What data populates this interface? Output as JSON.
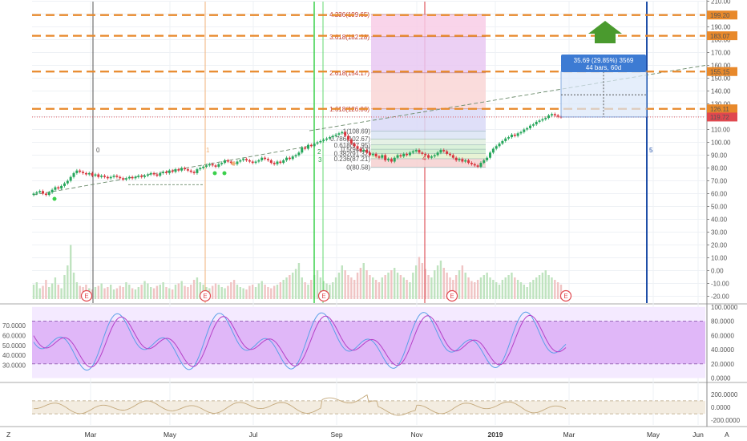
{
  "chart_data": [
    {
      "type": "candlestick",
      "panel": "price",
      "title": "",
      "y_axis_ticks": [
        "210.00",
        "200.00",
        "190.00",
        "180.00",
        "170.00",
        "160.00",
        "150.00",
        "140.00",
        "130.00",
        "120.00",
        "110.00",
        "100.00",
        "90.00",
        "80.00",
        "70.00",
        "60.00",
        "50.00",
        "40.00",
        "30.00",
        "20.00",
        "10.00",
        "0.00",
        "-10.00",
        "-20.00"
      ],
      "ylim": [
        -24,
        214
      ],
      "x_axis_labels": [
        "Mar",
        "May",
        "Jul",
        "Sep",
        "Nov",
        "2019",
        "Mar",
        "May",
        "Jun"
      ],
      "axis_corner_labels": [
        "Z",
        "A"
      ],
      "price_badges": [
        {
          "value": 199.2,
          "text": "199.20",
          "color": "#e8892b"
        },
        {
          "value": 183.07,
          "text": "183.07",
          "color": "#e8892b"
        },
        {
          "value": 155.15,
          "text": "155.15",
          "color": "#e8892b"
        },
        {
          "value": 126.11,
          "text": "126.11",
          "color": "#e8892b"
        },
        {
          "value": 119.72,
          "text": "119.72",
          "color": "#e0484f"
        }
      ],
      "horizontal_levels": [
        199.2,
        183.07,
        155.15,
        126.11
      ],
      "fib_extension_labels": [
        "4.236(199.65)",
        "3.618(182.28)",
        "2.618(154.17)",
        "1.618(126.06)"
      ],
      "fib_retracement_labels": [
        "1(108.69)",
        "0.786(102.67)",
        "0.618(97.95)",
        "0.5(94.63)",
        "0.382(91.32)",
        "0.236(87.21)",
        "0(80.58)"
      ],
      "measure_box": {
        "line1": "35.69 (29.85%) 3569",
        "line2": "44 bars, 60d"
      },
      "wave_labels": [
        "0",
        "1",
        "2",
        "3",
        "4",
        "5"
      ],
      "earnings_markers": [
        "E",
        "E",
        "E",
        "E",
        "E"
      ],
      "candle_closes": [
        60,
        61,
        62,
        60,
        59,
        61,
        63,
        65,
        64,
        66,
        68,
        70,
        73,
        76,
        78,
        77,
        76,
        75,
        76,
        74,
        75,
        73,
        74,
        73,
        72,
        73,
        74,
        73,
        72,
        71,
        72,
        73,
        72,
        73,
        74,
        73,
        74,
        75,
        76,
        75,
        74,
        76,
        77,
        76,
        78,
        77,
        79,
        78,
        80,
        79,
        78,
        77,
        76,
        79,
        80,
        81,
        82,
        83,
        82,
        81,
        83,
        84,
        86,
        85,
        84,
        83,
        85,
        86,
        87,
        86,
        85,
        84,
        85,
        86,
        88,
        87,
        86,
        84,
        83,
        85,
        84,
        86,
        88,
        87,
        89,
        90,
        92,
        96,
        95,
        98,
        97,
        99,
        100,
        101,
        102,
        103,
        104,
        105,
        106,
        107,
        108,
        105,
        102,
        99,
        97,
        95,
        93,
        94,
        92,
        90,
        91,
        89,
        88,
        90,
        86,
        87,
        85,
        88,
        90,
        89,
        91,
        90,
        92,
        93,
        94,
        92,
        91,
        90,
        88,
        89,
        90,
        92,
        94,
        93,
        91,
        90,
        88,
        86,
        87,
        85,
        86,
        84,
        83,
        82,
        81,
        84,
        86,
        88,
        92,
        95,
        97,
        99,
        101,
        103,
        104,
        106,
        105,
        107,
        108,
        110,
        111,
        113,
        114,
        116,
        117,
        118,
        119,
        121,
        122,
        121,
        120,
        119.72
      ],
      "volume": [
        12,
        14,
        9,
        11,
        16,
        10,
        13,
        18,
        12,
        9,
        20,
        28,
        45,
        22,
        14,
        11,
        10,
        12,
        9,
        8,
        10,
        11,
        13,
        9,
        10,
        12,
        8,
        9,
        11,
        10,
        14,
        12,
        9,
        8,
        10,
        12,
        15,
        13,
        10,
        9,
        11,
        12,
        14,
        10,
        9,
        8,
        12,
        13,
        15,
        11,
        10,
        12,
        16,
        18,
        14,
        12,
        10,
        9,
        11,
        13,
        12,
        10,
        9,
        11,
        14,
        16,
        12,
        10,
        9,
        8,
        11,
        12,
        10,
        13,
        15,
        12,
        10,
        9,
        11,
        12,
        14,
        16,
        18,
        20,
        22,
        25,
        30,
        18,
        14,
        12,
        16,
        20,
        24,
        18,
        15,
        13,
        12,
        14,
        18,
        22,
        28,
        24,
        20,
        18,
        16,
        22,
        26,
        30,
        24,
        20,
        18,
        16,
        14,
        18,
        20,
        22,
        24,
        26,
        22,
        20,
        18,
        16,
        14,
        22,
        28,
        35,
        30,
        25,
        20,
        18,
        24,
        28,
        32,
        26,
        22,
        18,
        16,
        20,
        24,
        28,
        22,
        18,
        15,
        14,
        16,
        18,
        20,
        22,
        18,
        16,
        14,
        12,
        16,
        18,
        20,
        22,
        18,
        16,
        14,
        12,
        10,
        14,
        16,
        18,
        20,
        22,
        24,
        20,
        18,
        16,
        14,
        12
      ]
    },
    {
      "type": "line",
      "panel": "stochastic_rsi",
      "y_axis_ticks_right": [
        "100.0000",
        "80.0000",
        "60.0000",
        "40.0000",
        "20.0000",
        "0.0000"
      ],
      "y_axis_ticks_left": [
        "70.0000",
        "60.0000",
        "50.0000",
        "40.0000",
        "30.0000"
      ],
      "ylim": [
        0,
        100
      ],
      "band": [
        20,
        80
      ]
    },
    {
      "type": "line",
      "panel": "oscillator",
      "y_axis_ticks": [
        "200.0000",
        "0.0000",
        "-200.0000"
      ],
      "ylim": [
        -260,
        260
      ],
      "band": [
        -100,
        100
      ]
    }
  ]
}
